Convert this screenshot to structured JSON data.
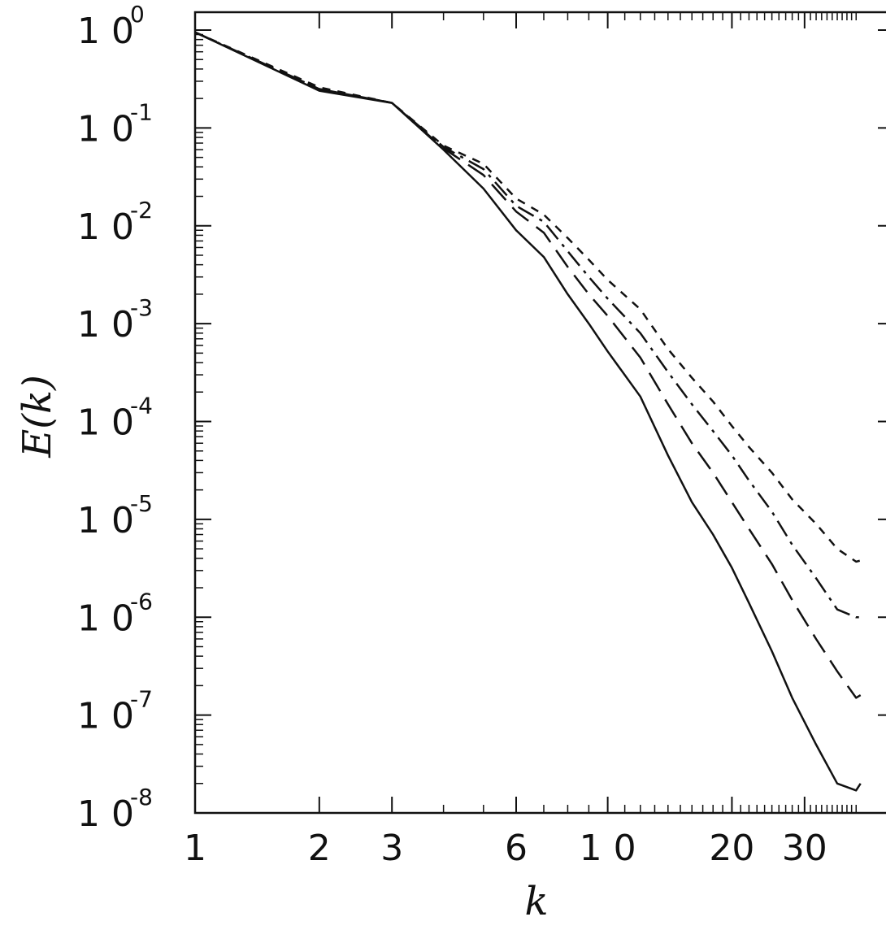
{
  "chart_data": {
    "type": "line",
    "xlabel": "k",
    "ylabel": "E(k)",
    "xscale": "log",
    "yscale": "log",
    "xlim": [
      1,
      42
    ],
    "ylim": [
      1e-08,
      1
    ],
    "x_ticks": [
      1,
      2,
      3,
      6,
      10,
      20,
      30
    ],
    "x_tick_labels": [
      "1",
      "2",
      "3",
      "6",
      "1 0",
      "20",
      "30"
    ],
    "y_ticks": [
      {
        "base": "1 0",
        "exp": "0"
      },
      {
        "base": "1 0",
        "exp": "-1"
      },
      {
        "base": "1 0",
        "exp": "-2"
      },
      {
        "base": "1 0",
        "exp": "-3"
      },
      {
        "base": "1 0",
        "exp": "-4"
      },
      {
        "base": "1 0",
        "exp": "-5"
      },
      {
        "base": "1 0",
        "exp": "-6"
      },
      {
        "base": "1 0",
        "exp": "-7"
      },
      {
        "base": "1 0",
        "exp": "-8"
      }
    ],
    "legend": false,
    "grid": false,
    "series": [
      {
        "style": "solid",
        "x": [
          1,
          2,
          3,
          4,
          5,
          6,
          7,
          8,
          9,
          10,
          12,
          14,
          16,
          18,
          20,
          22,
          25,
          28,
          32,
          36,
          40,
          41
        ],
        "y": [
          0.95,
          0.24,
          0.18,
          0.06,
          0.024,
          0.009,
          0.0048,
          0.002,
          0.001,
          0.00052,
          0.00018,
          4.5e-05,
          1.5e-05,
          7e-06,
          3.2e-06,
          1.4e-06,
          4.5e-07,
          1.5e-07,
          5e-08,
          2e-08,
          1.7e-08,
          2e-08
        ]
      },
      {
        "style": "long-dash",
        "x": [
          1,
          2,
          3,
          4,
          5,
          6,
          7,
          8,
          9,
          10,
          12,
          14,
          16,
          18,
          20,
          22,
          25,
          28,
          32,
          36,
          40,
          41
        ],
        "y": [
          0.95,
          0.25,
          0.18,
          0.062,
          0.033,
          0.014,
          0.0085,
          0.0038,
          0.002,
          0.0012,
          0.00045,
          0.00015,
          6e-05,
          3e-05,
          1.5e-05,
          8e-06,
          3.5e-06,
          1.5e-06,
          6e-07,
          2.8e-07,
          1.5e-07,
          1.6e-07
        ]
      },
      {
        "style": "dash-dot",
        "x": [
          1,
          2,
          3,
          4,
          5,
          6,
          7,
          8,
          9,
          10,
          12,
          14,
          16,
          18,
          20,
          22,
          25,
          28,
          32,
          36,
          40,
          41
        ],
        "y": [
          0.95,
          0.25,
          0.18,
          0.064,
          0.038,
          0.016,
          0.011,
          0.0055,
          0.003,
          0.0018,
          0.0008,
          0.00032,
          0.00015,
          8e-05,
          4.5e-05,
          2.5e-05,
          1.2e-05,
          5.5e-06,
          2.5e-06,
          1.2e-06,
          1e-06,
          1e-06
        ]
      },
      {
        "style": "short-dash",
        "x": [
          1,
          2,
          3,
          4,
          5,
          6,
          7,
          8,
          9,
          10,
          12,
          14,
          16,
          18,
          20,
          22,
          25,
          28,
          32,
          36,
          40,
          41
        ],
        "y": [
          0.95,
          0.26,
          0.18,
          0.066,
          0.043,
          0.019,
          0.013,
          0.0075,
          0.0045,
          0.0028,
          0.0014,
          0.00055,
          0.00028,
          0.00016,
          9e-05,
          5.5e-05,
          3e-05,
          1.6e-05,
          9e-06,
          5e-06,
          3.7e-06,
          3.8e-06
        ]
      }
    ]
  }
}
